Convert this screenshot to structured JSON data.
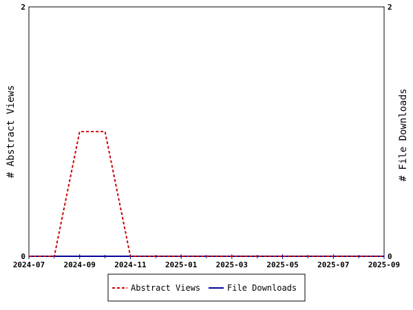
{
  "chart_data": {
    "type": "line",
    "x": [
      "2024-07",
      "2024-08",
      "2024-09",
      "2024-10",
      "2024-11",
      "2024-12",
      "2025-01",
      "2025-02",
      "2025-03",
      "2025-04",
      "2025-05",
      "2025-06",
      "2025-07",
      "2025-08",
      "2025-09"
    ],
    "x_tick_labels": [
      "2024-07",
      "2024-09",
      "2024-11",
      "2025-01",
      "2025-03",
      "2025-05",
      "2025-07",
      "2025-09"
    ],
    "y_left_label": "# Abstract Views",
    "y_right_label": "# File Downloads",
    "y_left_ticks": [
      "0",
      "2"
    ],
    "y_right_ticks": [
      "0",
      "2"
    ],
    "ylim": [
      0,
      2
    ],
    "grid": false,
    "legend_position": "bottom",
    "series": [
      {
        "name": "Abstract Views",
        "axis": "left",
        "style": "dashed",
        "color": "#cc0000",
        "values": [
          0,
          0,
          1,
          1,
          0,
          0,
          0,
          0,
          0,
          0,
          0,
          0,
          0,
          0,
          0
        ]
      },
      {
        "name": "File Downloads",
        "axis": "right",
        "style": "solid",
        "color": "#000099",
        "values": [
          0,
          0,
          0,
          0,
          0,
          0,
          0,
          0,
          0,
          0,
          0,
          0,
          0,
          0,
          0
        ]
      }
    ]
  }
}
